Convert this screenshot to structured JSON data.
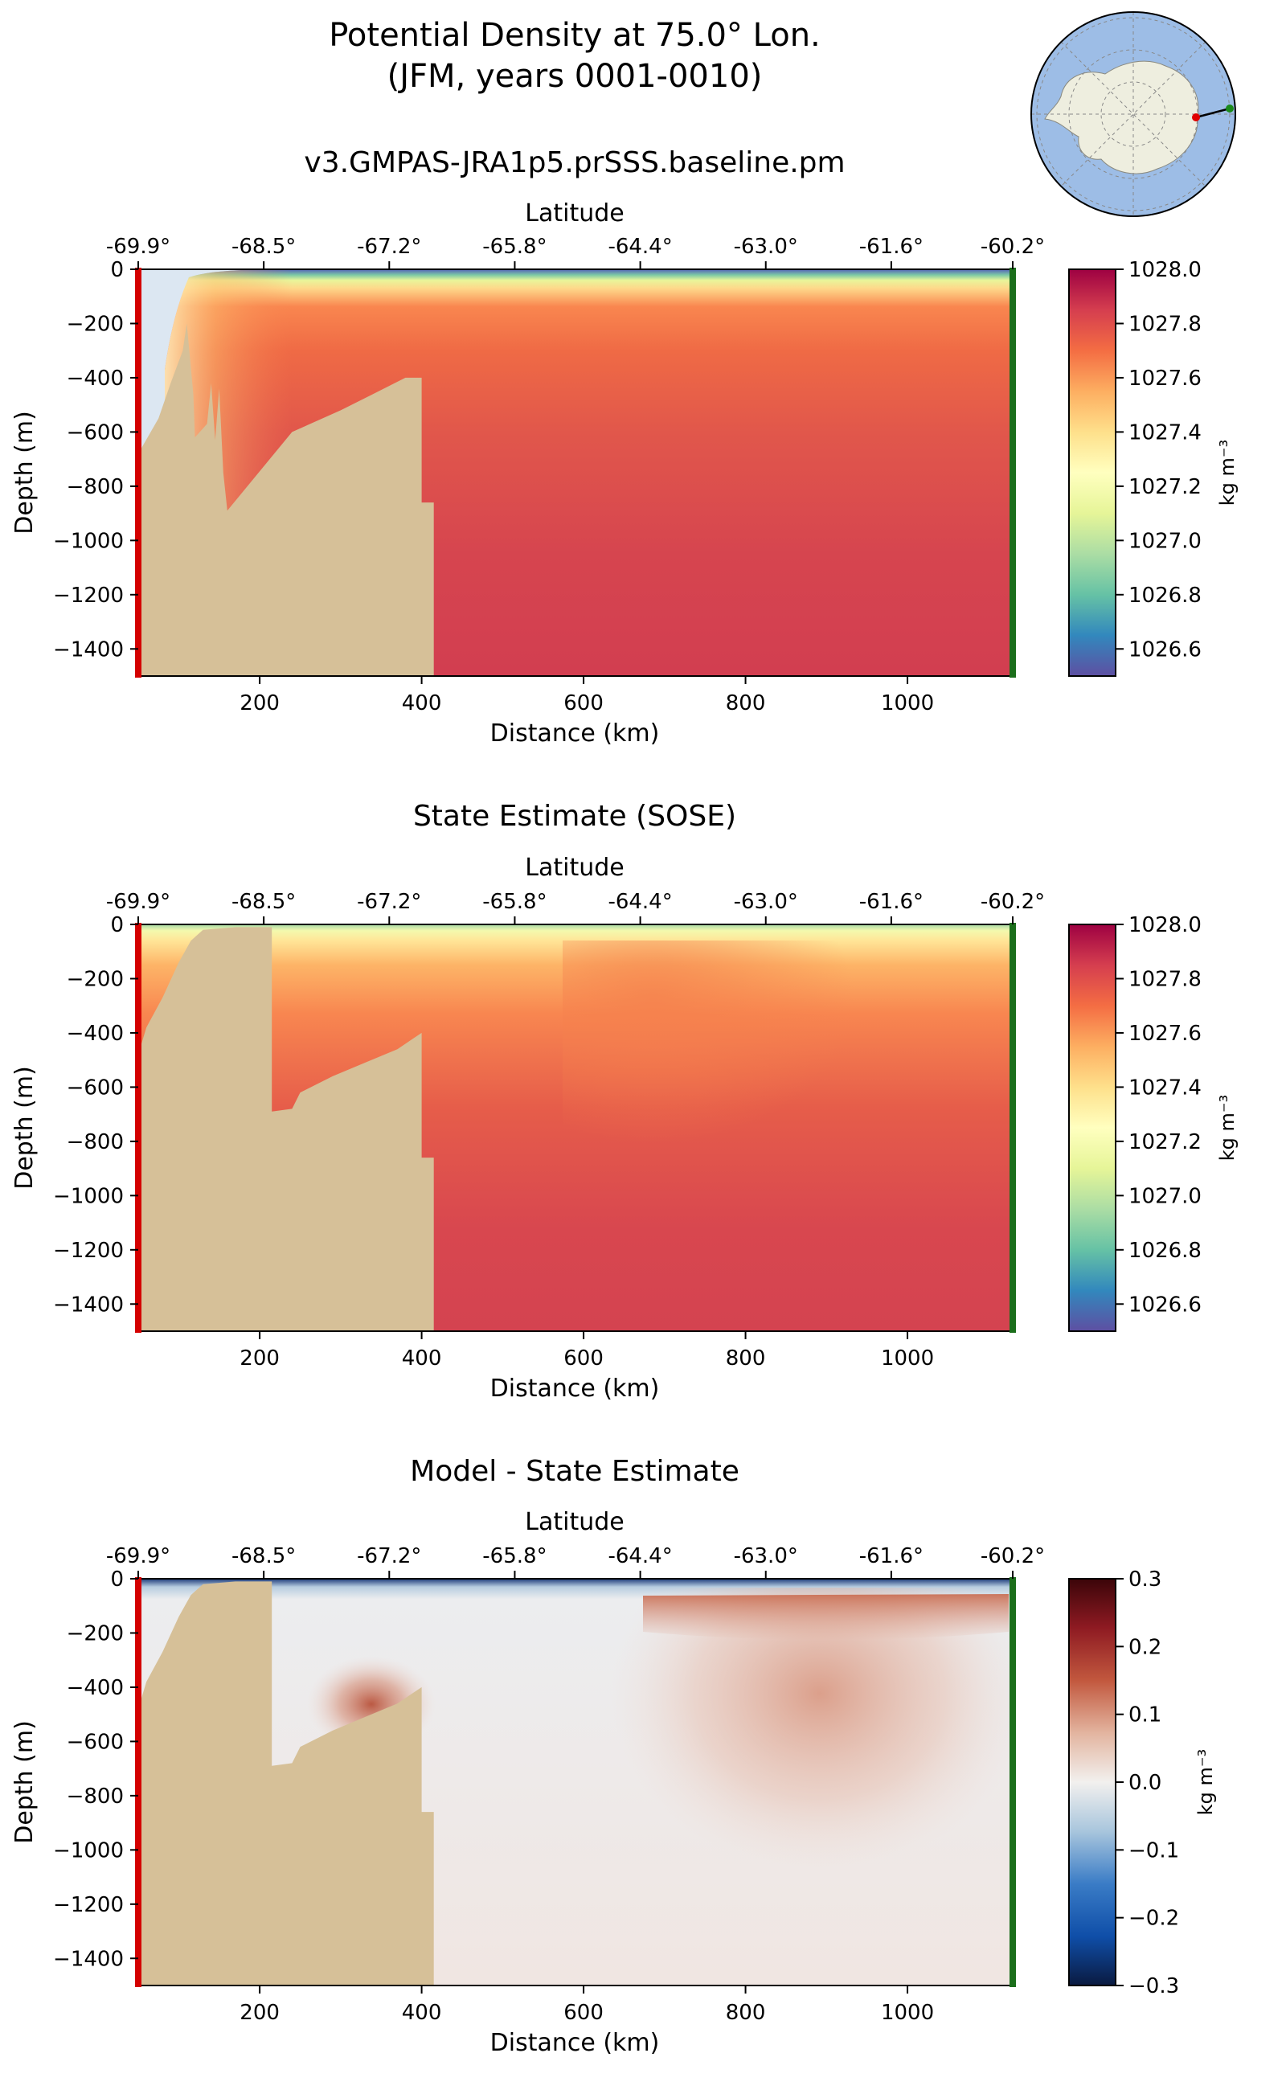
{
  "figure": {
    "title_line1": "Potential Density at 75.0° Lon.",
    "title_line2": "(JFM, years 0001-0010)"
  },
  "inset_map": {
    "description_icon": "antarctica-polar-map-icon",
    "ocean_color": "#9dbde6",
    "land_color": "#eeeedf"
  },
  "chart_data": [
    {
      "type": "heatmap",
      "title": "v3.GMPAS-JRA1p5.prSSS.baseline.pm",
      "xlabel": "Distance (km)",
      "ylabel": "Depth (m)",
      "top_axis_label": "Latitude",
      "xlim": [
        50,
        1130
      ],
      "ylim": [
        -1500,
        0
      ],
      "x_ticks": [
        200,
        400,
        600,
        800,
        1000
      ],
      "y_ticks": [
        0,
        -200,
        -400,
        -600,
        -800,
        -1000,
        -1200,
        -1400
      ],
      "y_tick_labels": [
        "0",
        "−200",
        "−400",
        "−600",
        "−800",
        "−1000",
        "−1200",
        "−1400"
      ],
      "lat_ticks": [
        {
          "km": 50,
          "label": "-69.9°"
        },
        {
          "km": 205,
          "label": "-68.5°"
        },
        {
          "km": 360,
          "label": "-67.2°"
        },
        {
          "km": 515,
          "label": "-65.8°"
        },
        {
          "km": 670,
          "label": "-64.4°"
        },
        {
          "km": 825,
          "label": "-63.0°"
        },
        {
          "km": 980,
          "label": "-61.6°"
        },
        {
          "km": 1130,
          "label": "-60.2°"
        }
      ],
      "colorbar": {
        "label": "kg m⁻³",
        "range": [
          1026.5,
          1028.0
        ],
        "ticks": [
          1026.6,
          1026.8,
          1027.0,
          1027.2,
          1027.4,
          1027.6,
          1027.8,
          1028.0
        ],
        "tick_labels": [
          "1026.6",
          "1026.8",
          "1027.0",
          "1027.2",
          "1027.4",
          "1027.6",
          "1027.8",
          "1028.0"
        ],
        "colormap": "Spectral_r"
      },
      "bathymetry_km_depth": [
        [
          50,
          -1500
        ],
        [
          50,
          -680
        ],
        [
          75,
          -550
        ],
        [
          90,
          -420
        ],
        [
          105,
          -300
        ],
        [
          110,
          -200
        ],
        [
          118,
          -460
        ],
        [
          120,
          -620
        ],
        [
          135,
          -570
        ],
        [
          140,
          -420
        ],
        [
          145,
          -630
        ],
        [
          150,
          -440
        ],
        [
          155,
          -750
        ],
        [
          160,
          -890
        ],
        [
          240,
          -600
        ],
        [
          300,
          -520
        ],
        [
          340,
          -460
        ],
        [
          380,
          -400
        ],
        [
          400,
          -400
        ],
        [
          400,
          -860
        ],
        [
          415,
          -860
        ],
        [
          415,
          -1500
        ]
      ],
      "bathymetry_color": "#d6c098"
    },
    {
      "type": "heatmap",
      "title": "State Estimate (SOSE)",
      "xlabel": "Distance (km)",
      "ylabel": "Depth (m)",
      "top_axis_label": "Latitude",
      "xlim": [
        50,
        1130
      ],
      "ylim": [
        -1500,
        0
      ],
      "x_ticks": [
        200,
        400,
        600,
        800,
        1000
      ],
      "y_ticks": [
        0,
        -200,
        -400,
        -600,
        -800,
        -1000,
        -1200,
        -1400
      ],
      "y_tick_labels": [
        "0",
        "−200",
        "−400",
        "−600",
        "−800",
        "−1000",
        "−1200",
        "−1400"
      ],
      "lat_ticks": [
        {
          "km": 50,
          "label": "-69.9°"
        },
        {
          "km": 205,
          "label": "-68.5°"
        },
        {
          "km": 360,
          "label": "-67.2°"
        },
        {
          "km": 515,
          "label": "-65.8°"
        },
        {
          "km": 670,
          "label": "-64.4°"
        },
        {
          "km": 825,
          "label": "-63.0°"
        },
        {
          "km": 980,
          "label": "-61.6°"
        },
        {
          "km": 1130,
          "label": "-60.2°"
        }
      ],
      "colorbar": {
        "label": "kg m⁻³",
        "range": [
          1026.5,
          1028.0
        ],
        "ticks": [
          1026.6,
          1026.8,
          1027.0,
          1027.2,
          1027.4,
          1027.6,
          1027.8,
          1028.0
        ],
        "tick_labels": [
          "1026.6",
          "1026.8",
          "1027.0",
          "1027.2",
          "1027.4",
          "1027.6",
          "1027.8",
          "1028.0"
        ],
        "colormap": "Spectral_r"
      },
      "bathymetry_km_depth": [
        [
          50,
          -1500
        ],
        [
          50,
          -480
        ],
        [
          60,
          -380
        ],
        [
          80,
          -270
        ],
        [
          100,
          -140
        ],
        [
          115,
          -60
        ],
        [
          130,
          -20
        ],
        [
          170,
          -10
        ],
        [
          215,
          -10
        ],
        [
          215,
          -690
        ],
        [
          240,
          -680
        ],
        [
          250,
          -620
        ],
        [
          290,
          -560
        ],
        [
          330,
          -510
        ],
        [
          370,
          -460
        ],
        [
          400,
          -400
        ],
        [
          400,
          -860
        ],
        [
          415,
          -860
        ],
        [
          415,
          -1500
        ]
      ],
      "bathymetry_color": "#d6c098"
    },
    {
      "type": "heatmap",
      "title": "Model - State Estimate",
      "xlabel": "Distance (km)",
      "ylabel": "Depth (m)",
      "top_axis_label": "Latitude",
      "xlim": [
        50,
        1130
      ],
      "ylim": [
        -1500,
        0
      ],
      "x_ticks": [
        200,
        400,
        600,
        800,
        1000
      ],
      "y_ticks": [
        0,
        -200,
        -400,
        -600,
        -800,
        -1000,
        -1200,
        -1400
      ],
      "y_tick_labels": [
        "0",
        "−200",
        "−400",
        "−600",
        "−800",
        "−1000",
        "−1200",
        "−1400"
      ],
      "lat_ticks": [
        {
          "km": 50,
          "label": "-69.9°"
        },
        {
          "km": 205,
          "label": "-68.5°"
        },
        {
          "km": 360,
          "label": "-67.2°"
        },
        {
          "km": 515,
          "label": "-65.8°"
        },
        {
          "km": 670,
          "label": "-64.4°"
        },
        {
          "km": 825,
          "label": "-63.0°"
        },
        {
          "km": 980,
          "label": "-61.6°"
        },
        {
          "km": 1130,
          "label": "-60.2°"
        }
      ],
      "colorbar": {
        "label": "kg m⁻³",
        "range": [
          -0.3,
          0.3
        ],
        "ticks": [
          -0.3,
          -0.2,
          -0.1,
          0.0,
          0.1,
          0.2,
          0.3
        ],
        "tick_labels": [
          "−0.3",
          "−0.2",
          "−0.1",
          "0.0",
          "0.1",
          "0.2",
          "0.3"
        ],
        "colormap": "RdBu_r"
      },
      "bathymetry_km_depth": [
        [
          50,
          -1500
        ],
        [
          50,
          -480
        ],
        [
          60,
          -380
        ],
        [
          80,
          -270
        ],
        [
          100,
          -140
        ],
        [
          115,
          -60
        ],
        [
          130,
          -20
        ],
        [
          170,
          -10
        ],
        [
          215,
          -10
        ],
        [
          215,
          -690
        ],
        [
          240,
          -680
        ],
        [
          250,
          -620
        ],
        [
          290,
          -560
        ],
        [
          330,
          -510
        ],
        [
          370,
          -460
        ],
        [
          400,
          -400
        ],
        [
          400,
          -860
        ],
        [
          415,
          -860
        ],
        [
          415,
          -1500
        ]
      ],
      "bathymetry_color": "#d6c098"
    }
  ]
}
